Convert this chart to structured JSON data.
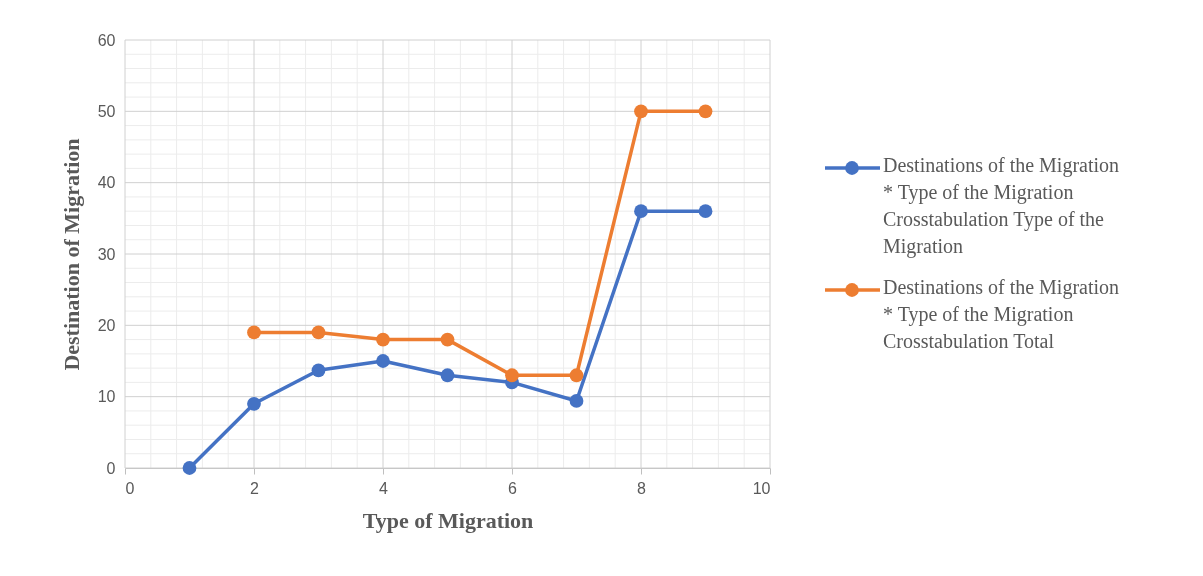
{
  "chart_data": {
    "type": "line",
    "xlabel": "Type of Migration",
    "ylabel": "Destination of Migration",
    "series": [
      {
        "name": "Destinations of the Migration * Type of the Migration Crosstabulation Type of the Migration",
        "color": "#4472c4",
        "x": [
          1,
          2,
          3,
          4,
          5,
          6,
          7,
          8,
          9
        ],
        "values": [
          0,
          9,
          13.7,
          15,
          13,
          12,
          9.4,
          36,
          36
        ]
      },
      {
        "name": "Destinations of the Migration * Type of the Migration Crosstabulation Total",
        "color": "#ed7d31",
        "x": [
          2,
          3,
          4,
          5,
          6,
          7,
          8,
          9
        ],
        "values": [
          19,
          19,
          18,
          18,
          13,
          13,
          50,
          50
        ]
      }
    ],
    "xlim": [
      0,
      10
    ],
    "xticks": [
      0,
      {
        "value": 0.4,
        "label": null
      },
      {
        "value": 0.8,
        "label": null
      },
      {
        "value": 1.2,
        "label": null
      },
      {
        "value": 1.6,
        "label": null
      },
      2,
      {
        "value": 2.4,
        "label": null
      },
      {
        "value": 2.8,
        "label": null
      },
      {
        "value": 3.2,
        "label": null
      },
      {
        "value": 3.6,
        "label": null
      },
      4,
      {
        "value": 4.4,
        "label": null
      },
      {
        "value": 4.8,
        "label": null
      },
      {
        "value": 5.2,
        "label": null
      },
      {
        "value": 5.6,
        "label": null
      },
      6,
      {
        "value": 6.4,
        "label": null
      },
      {
        "value": 6.8,
        "label": null
      },
      {
        "value": 7.2,
        "label": null
      },
      {
        "value": 7.6,
        "label": null
      },
      8,
      {
        "value": 8.4,
        "label": null
      },
      {
        "value": 8.8,
        "label": null
      },
      {
        "value": 9.2,
        "label": null
      },
      {
        "value": 9.6,
        "label": null
      },
      10
    ],
    "ylim": [
      0,
      60
    ],
    "yticks": [
      0,
      {
        "value": 2,
        "label": null
      },
      {
        "value": 4,
        "label": null
      },
      {
        "value": 6,
        "label": null
      },
      {
        "value": 8,
        "label": null
      },
      10,
      {
        "value": 12,
        "label": null
      },
      {
        "value": 14,
        "label": null
      },
      {
        "value": 16,
        "label": null
      },
      {
        "value": 18,
        "label": null
      },
      20,
      {
        "value": 22,
        "label": null
      },
      {
        "value": 24,
        "label": null
      },
      {
        "value": 26,
        "label": null
      },
      {
        "value": 28,
        "label": null
      },
      30,
      {
        "value": 32,
        "label": null
      },
      {
        "value": 34,
        "label": null
      },
      {
        "value": 36,
        "label": null
      },
      {
        "value": 38,
        "label": null
      },
      40,
      {
        "value": 42,
        "label": null
      },
      {
        "value": 44,
        "label": null
      },
      {
        "value": 46,
        "label": null
      },
      {
        "value": 48,
        "label": null
      },
      50,
      {
        "value": 52,
        "label": null
      },
      {
        "value": 54,
        "label": null
      },
      {
        "value": 56,
        "label": null
      },
      {
        "value": 58,
        "label": null
      },
      60
    ],
    "grid": true,
    "legend": "right",
    "marker": "circle",
    "line_style": "solid"
  }
}
